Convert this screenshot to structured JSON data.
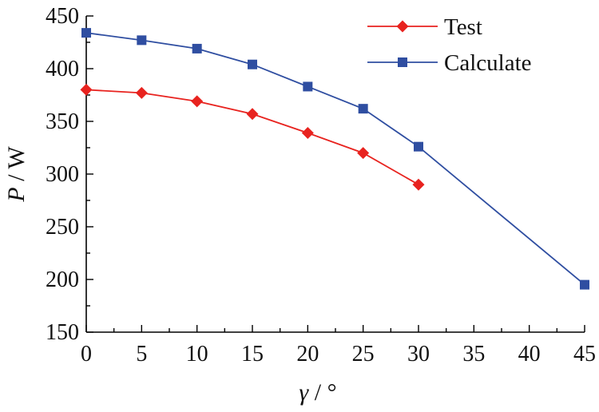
{
  "chart_data": {
    "type": "line",
    "title": "",
    "xlabel": {
      "var": "γ",
      "unit": "°"
    },
    "ylabel": {
      "var": "P",
      "unit": "W"
    },
    "xlim": [
      0,
      45
    ],
    "ylim": [
      150,
      450
    ],
    "xticks": [
      0,
      5,
      10,
      15,
      20,
      25,
      30,
      35,
      40,
      45
    ],
    "yticks": [
      150,
      200,
      250,
      300,
      350,
      400,
      450
    ],
    "grid": false,
    "legend_position": "top-right",
    "series": [
      {
        "name": "Test",
        "color": "#e8231f",
        "marker": "diamond",
        "x": [
          0,
          5,
          10,
          15,
          20,
          25,
          30
        ],
        "y": [
          380,
          377,
          369,
          357,
          339,
          320,
          290
        ]
      },
      {
        "name": "Calculate",
        "color": "#2f4ea1",
        "marker": "square",
        "x": [
          0,
          5,
          10,
          15,
          20,
          25,
          30,
          45
        ],
        "y": [
          434,
          427,
          419,
          404,
          383,
          362,
          326,
          195
        ]
      }
    ]
  }
}
